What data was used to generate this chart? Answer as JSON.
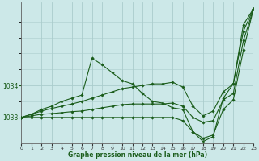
{
  "title": "Graphe pression niveau de la mer (hPa)",
  "background_color": "#cce8e8",
  "grid_color": "#aacccc",
  "line_color": "#1a5c1a",
  "marker_color": "#1a5c1a",
  "xlim": [
    0,
    23
  ],
  "ylim": [
    1032.2,
    1036.6
  ],
  "yticks": [
    1033,
    1034
  ],
  "xticks": [
    0,
    1,
    2,
    3,
    4,
    5,
    6,
    7,
    8,
    9,
    10,
    11,
    12,
    13,
    14,
    15,
    16,
    17,
    18,
    19,
    20,
    21,
    22,
    23
  ],
  "series": [
    {
      "x": [
        0,
        1,
        2,
        3,
        4,
        5,
        6,
        7,
        8,
        9,
        10,
        11,
        12,
        13,
        14,
        15,
        16,
        17,
        18,
        19,
        20,
        21,
        22,
        23
      ],
      "y": [
        1033.0,
        1033.1,
        1033.25,
        1033.35,
        1033.5,
        1033.6,
        1033.7,
        1034.85,
        1034.65,
        1034.4,
        1034.15,
        1034.05,
        1033.75,
        1033.5,
        1033.45,
        1033.3,
        1033.25,
        1032.55,
        1032.25,
        1032.4,
        1033.6,
        1034.05,
        1035.9,
        1036.4
      ]
    },
    {
      "x": [
        0,
        1,
        2,
        3,
        4,
        5,
        6,
        7,
        8,
        9,
        10,
        11,
        12,
        13,
        14,
        15,
        16,
        17,
        18,
        19,
        20,
        21,
        22,
        23
      ],
      "y": [
        1033.0,
        1033.1,
        1033.2,
        1033.28,
        1033.35,
        1033.42,
        1033.5,
        1033.6,
        1033.7,
        1033.8,
        1033.9,
        1033.95,
        1034.0,
        1034.05,
        1034.05,
        1034.1,
        1033.95,
        1033.35,
        1033.05,
        1033.2,
        1033.8,
        1034.05,
        1035.7,
        1036.4
      ]
    },
    {
      "x": [
        0,
        1,
        2,
        3,
        4,
        5,
        6,
        7,
        8,
        9,
        10,
        11,
        12,
        13,
        14,
        15,
        16,
        17,
        18,
        19,
        20,
        21,
        22,
        23
      ],
      "y": [
        1033.0,
        1033.05,
        1033.1,
        1033.12,
        1033.15,
        1033.18,
        1033.2,
        1033.25,
        1033.3,
        1033.35,
        1033.4,
        1033.42,
        1033.42,
        1033.42,
        1033.42,
        1033.45,
        1033.35,
        1033.0,
        1032.85,
        1032.9,
        1033.55,
        1033.75,
        1035.4,
        1036.4
      ]
    },
    {
      "x": [
        0,
        1,
        2,
        3,
        4,
        5,
        6,
        7,
        8,
        9,
        10,
        11,
        12,
        13,
        14,
        15,
        16,
        17,
        18,
        19,
        20,
        21,
        22,
        23
      ],
      "y": [
        1033.0,
        1033.0,
        1033.0,
        1033.0,
        1033.0,
        1033.0,
        1033.0,
        1033.0,
        1033.0,
        1033.0,
        1033.0,
        1033.0,
        1033.0,
        1033.0,
        1033.0,
        1033.0,
        1032.9,
        1032.55,
        1032.35,
        1032.45,
        1033.25,
        1033.55,
        1035.1,
        1036.4
      ]
    }
  ]
}
